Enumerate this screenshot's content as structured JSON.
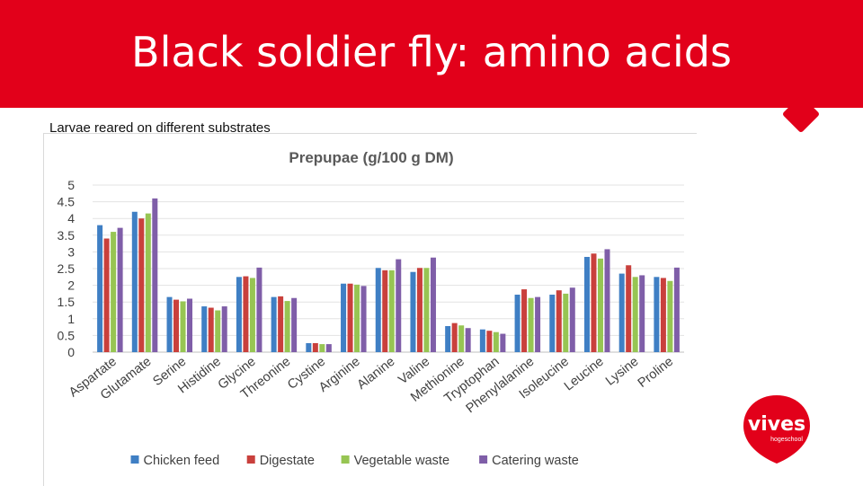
{
  "slide": {
    "title": "Black soldier fly: amino acids",
    "subtitle": "Larvae reared on different substrates"
  },
  "logo": {
    "name": "vives",
    "tagline": "hogeschool"
  },
  "colors": {
    "banner": "#e2001a",
    "series": [
      "#3f7fc4",
      "#c9403c",
      "#97c553",
      "#7f5ea8"
    ]
  },
  "chart_data": {
    "type": "bar",
    "title": "Prepupae (g/100 g DM)",
    "xlabel": "",
    "ylabel": "",
    "ylim": [
      0,
      5
    ],
    "yticks": [
      0,
      0.5,
      1,
      1.5,
      2,
      2.5,
      3,
      3.5,
      4,
      4.5,
      5
    ],
    "grid": true,
    "legend_position": "bottom",
    "categories": [
      "Aspartate",
      "Glutamate",
      "Serine",
      "Histidine",
      "Glycine",
      "Threonine",
      "Cystine",
      "Arginine",
      "Alanine",
      "Valine",
      "Methionine",
      "Tryptophan",
      "Phenylalanine",
      "Isoleucine",
      "Leucine",
      "Lysine",
      "Proline"
    ],
    "series": [
      {
        "name": "Chicken feed",
        "values": [
          3.8,
          4.2,
          1.65,
          1.37,
          2.25,
          1.65,
          0.27,
          2.05,
          2.52,
          2.4,
          0.78,
          0.68,
          1.72,
          1.72,
          2.85,
          2.35,
          2.25
        ]
      },
      {
        "name": "Digestate",
        "values": [
          3.4,
          4.0,
          1.57,
          1.33,
          2.27,
          1.67,
          0.27,
          2.05,
          2.45,
          2.52,
          0.87,
          0.64,
          1.88,
          1.85,
          2.95,
          2.6,
          2.22
        ]
      },
      {
        "name": "Vegetable waste",
        "values": [
          3.6,
          4.15,
          1.52,
          1.25,
          2.22,
          1.53,
          0.24,
          2.02,
          2.45,
          2.52,
          0.8,
          0.6,
          1.62,
          1.75,
          2.8,
          2.25,
          2.13
        ]
      },
      {
        "name": "Catering waste",
        "values": [
          3.72,
          4.6,
          1.6,
          1.37,
          2.53,
          1.62,
          0.24,
          1.98,
          2.78,
          2.83,
          0.72,
          0.55,
          1.65,
          1.93,
          3.08,
          2.3,
          2.53
        ]
      }
    ]
  }
}
